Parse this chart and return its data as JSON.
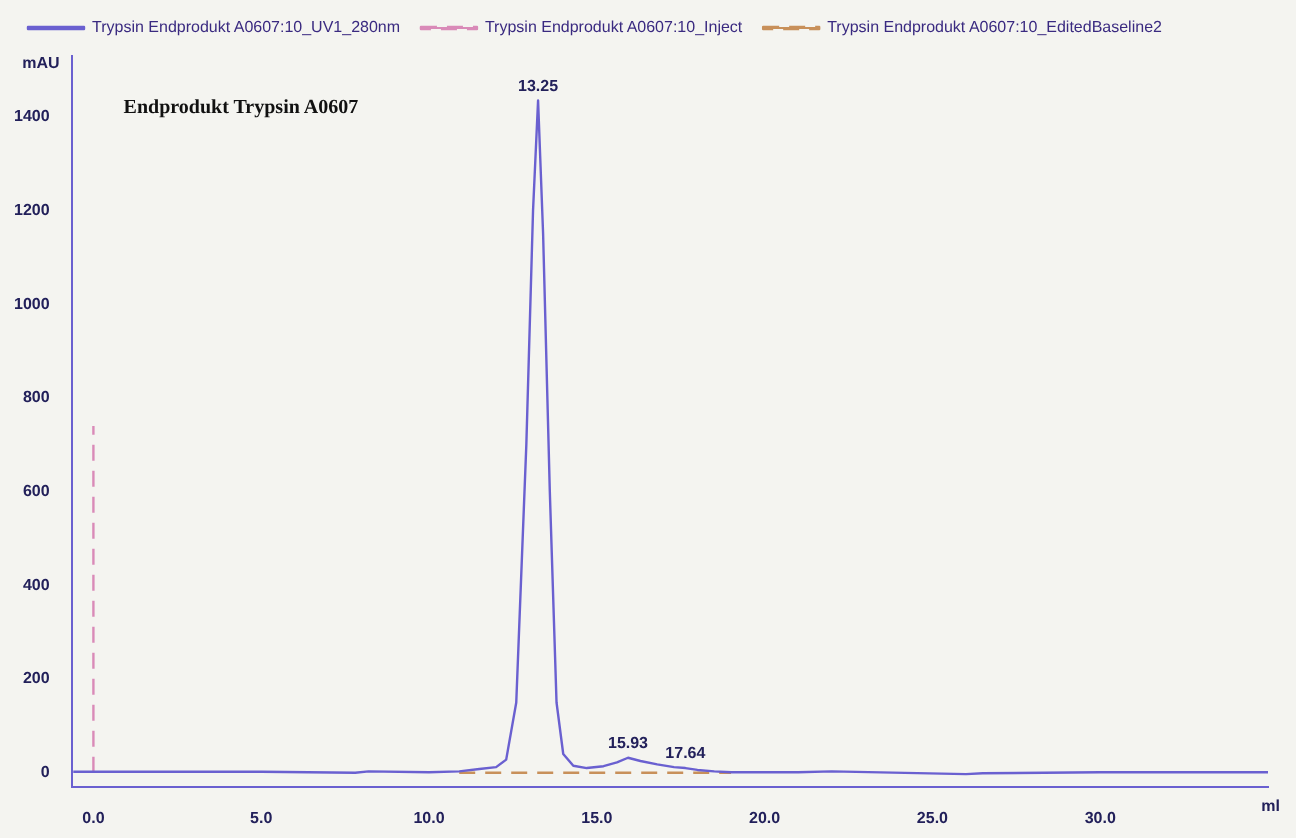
{
  "chart_data": {
    "type": "line",
    "title": "Endprodukt Trypsin A0607",
    "xlabel": "ml",
    "ylabel": "mAU",
    "xlim": [
      -0.65,
      35
    ],
    "ylim": [
      -30,
      1530
    ],
    "xticks": [
      {
        "value": 0,
        "label": "0.0"
      },
      {
        "value": 5,
        "label": "5.0"
      },
      {
        "value": 10,
        "label": "10.0"
      },
      {
        "value": 15,
        "label": "15.0"
      },
      {
        "value": 20,
        "label": "20.0"
      },
      {
        "value": 25,
        "label": "25.0"
      },
      {
        "value": 30,
        "label": "30.0"
      }
    ],
    "yticks": [
      0,
      200,
      400,
      600,
      800,
      1000,
      1200,
      1400
    ],
    "grid": false,
    "legend": "top",
    "marker": "none",
    "series": [
      {
        "name": "Trypsin Endprodukt A0607:10_UV1_280nm",
        "color": "#6a60d0",
        "line_style": "solid",
        "x": [
          -0.6,
          2,
          5,
          7.8,
          8.2,
          10,
          10.9,
          11.5,
          12,
          12.3,
          12.6,
          12.9,
          13.1,
          13.25,
          13.4,
          13.6,
          13.8,
          14,
          14.3,
          14.7,
          15.2,
          15.6,
          15.93,
          16.3,
          16.8,
          17.3,
          17.64,
          18,
          18.5,
          19,
          21,
          22,
          26,
          26.5,
          30,
          35
        ],
        "values": [
          2,
          2,
          2,
          0,
          3,
          1,
          3,
          8,
          12,
          28,
          150,
          700,
          1200,
          1435,
          1150,
          600,
          150,
          40,
          15,
          10,
          14,
          22,
          32,
          25,
          18,
          12,
          10,
          6,
          3,
          1,
          1,
          3,
          -3,
          -1,
          1,
          1
        ]
      },
      {
        "name": "Trypsin Endprodukt A0607:10_Inject",
        "color": "#d98ab8",
        "line_style": "dashed",
        "x": [
          0,
          0
        ],
        "values": [
          0,
          740
        ]
      },
      {
        "name": "Trypsin Endprodukt A0607:10_EditedBaseline2",
        "color": "#c8905a",
        "line_style": "dashed",
        "x": [
          10.9,
          19
        ],
        "values": [
          0,
          0
        ]
      }
    ],
    "annotations": [
      {
        "text": "13.25",
        "x": 13.25,
        "y": 1435
      },
      {
        "text": "15.93",
        "x": 15.93,
        "y": 32
      },
      {
        "text": "17.64",
        "x": 17.64,
        "y": 10
      }
    ]
  }
}
